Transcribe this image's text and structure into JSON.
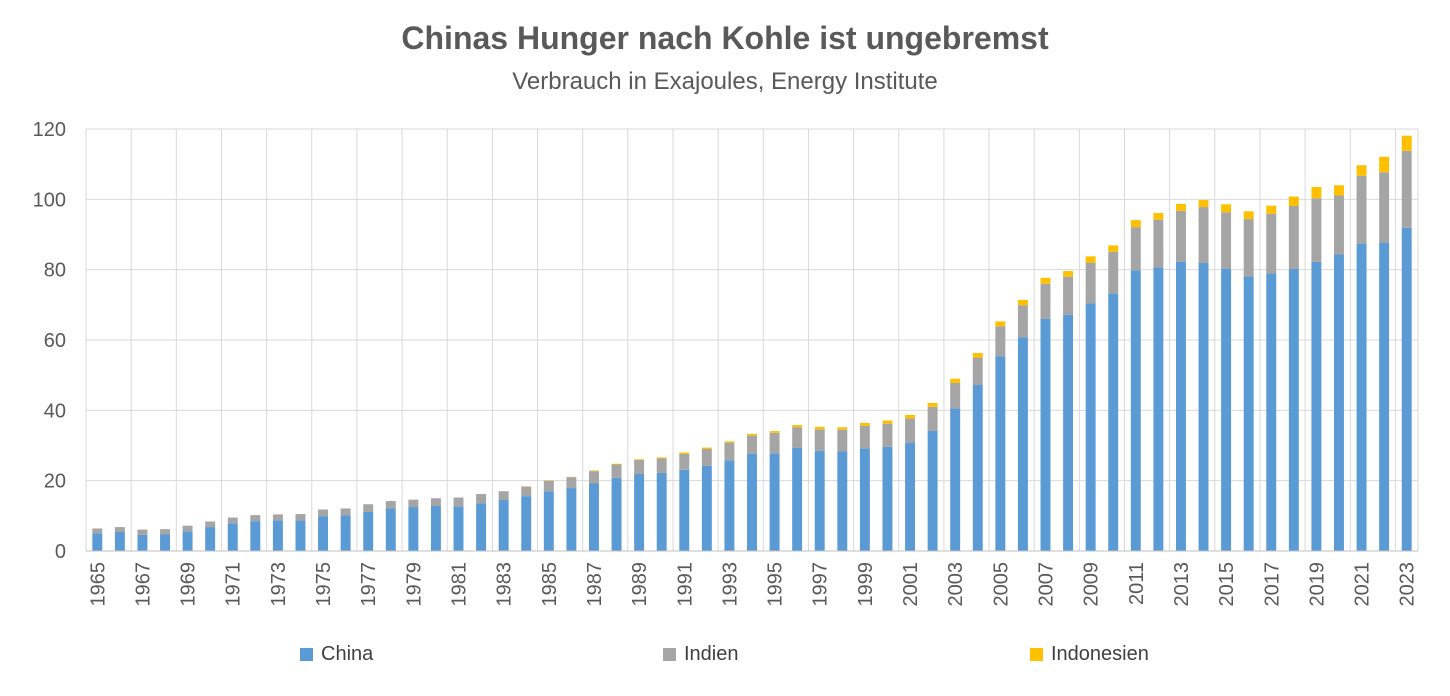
{
  "chart_data": {
    "type": "bar",
    "stacked": true,
    "title": "Chinas Hunger nach Kohle ist ungebremst",
    "subtitle": "Verbrauch in Exajoules, Energy Institute",
    "xlabel": "",
    "ylabel": "",
    "ylim": [
      0,
      120
    ],
    "yticks": [
      0,
      20,
      40,
      60,
      80,
      100,
      120
    ],
    "grid": true,
    "legend_position": "bottom",
    "categories": [
      "1965",
      "1966",
      "1967",
      "1968",
      "1969",
      "1970",
      "1971",
      "1972",
      "1973",
      "1974",
      "1975",
      "1976",
      "1977",
      "1978",
      "1979",
      "1980",
      "1981",
      "1982",
      "1983",
      "1984",
      "1985",
      "1986",
      "1987",
      "1988",
      "1989",
      "1990",
      "1991",
      "1992",
      "1993",
      "1994",
      "1995",
      "1996",
      "1997",
      "1998",
      "1999",
      "2000",
      "2001",
      "2002",
      "2003",
      "2004",
      "2005",
      "2006",
      "2007",
      "2008",
      "2009",
      "2010",
      "2011",
      "2012",
      "2013",
      "2014",
      "2015",
      "2016",
      "2017",
      "2018",
      "2019",
      "2020",
      "2021",
      "2022",
      "2023"
    ],
    "series": [
      {
        "name": "China",
        "color": "#5B9BD5",
        "values": [
          5.0,
          5.4,
          4.6,
          4.7,
          5.6,
          6.8,
          7.9,
          8.5,
          8.7,
          8.7,
          9.9,
          10.1,
          11.2,
          12.1,
          12.5,
          12.8,
          12.7,
          13.6,
          14.5,
          15.6,
          17.0,
          17.9,
          19.2,
          20.8,
          21.9,
          22.2,
          23.1,
          24.2,
          25.8,
          27.6,
          27.8,
          29.3,
          28.5,
          28.3,
          29.2,
          29.6,
          30.9,
          34.2,
          40.6,
          47.2,
          55.4,
          60.8,
          66.0,
          67.2,
          70.4,
          73.2,
          79.8,
          80.6,
          82.2,
          81.9,
          80.3,
          78.1,
          78.9,
          80.2,
          82.2,
          84.3,
          87.4,
          87.7,
          91.9
        ]
      },
      {
        "name": "Indien",
        "color": "#A5A5A5",
        "values": [
          1.4,
          1.4,
          1.5,
          1.5,
          1.6,
          1.6,
          1.6,
          1.7,
          1.7,
          1.8,
          1.9,
          2.0,
          2.1,
          2.1,
          2.1,
          2.2,
          2.5,
          2.6,
          2.5,
          2.7,
          3.0,
          3.1,
          3.5,
          3.8,
          4.0,
          4.1,
          4.5,
          4.8,
          5.0,
          5.2,
          5.8,
          5.9,
          6.1,
          6.2,
          6.4,
          6.6,
          6.8,
          6.8,
          7.2,
          7.8,
          8.5,
          9.1,
          10.0,
          10.8,
          11.6,
          11.9,
          12.3,
          13.6,
          14.5,
          15.9,
          16.0,
          16.3,
          17.0,
          17.9,
          18.1,
          16.8,
          19.3,
          20.0,
          21.9
        ]
      },
      {
        "name": "Indonesien",
        "color": "#FFC000",
        "values": [
          0.0,
          0.0,
          0.0,
          0.0,
          0.0,
          0.0,
          0.0,
          0.0,
          0.0,
          0.0,
          0.0,
          0.0,
          0.0,
          0.0,
          0.0,
          0.0,
          0.0,
          0.0,
          0.0,
          0.1,
          0.1,
          0.1,
          0.2,
          0.2,
          0.2,
          0.3,
          0.4,
          0.4,
          0.4,
          0.5,
          0.5,
          0.6,
          0.7,
          0.7,
          0.8,
          0.9,
          1.0,
          1.1,
          1.2,
          1.3,
          1.4,
          1.5,
          1.7,
          1.6,
          1.8,
          1.8,
          2.0,
          1.9,
          2.0,
          2.0,
          2.3,
          2.2,
          2.3,
          2.7,
          3.2,
          2.9,
          3.0,
          4.4,
          4.3
        ]
      }
    ]
  }
}
